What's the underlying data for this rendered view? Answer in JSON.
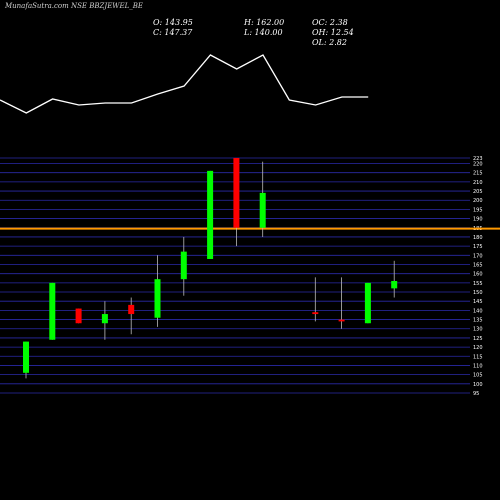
{
  "header": {
    "title": "MunafaSutra.com NSE BBZJEWEL_BE",
    "open": "O: 143.95",
    "close": "C: 147.37",
    "high": "H: 162.00",
    "low": "L: 140.00",
    "oc": "OC: 2.38",
    "oh": "OH: 12.54",
    "ol": "OL: 2.82"
  },
  "colors": {
    "background": "#000000",
    "up": "#00ff00",
    "down": "#ff0000",
    "grid": "#2a2aa8",
    "hline": "#ff9900",
    "line": "#ffffff"
  },
  "chart_data": {
    "type": "candlestick",
    "ylim": [
      95,
      223
    ],
    "yticks": [
      95,
      100,
      105,
      110,
      115,
      120,
      125,
      130,
      135,
      140,
      145,
      150,
      155,
      160,
      165,
      170,
      175,
      180,
      185,
      190,
      195,
      200,
      205,
      210,
      215,
      220,
      223
    ],
    "horizontal_line": 184.5,
    "candles": [
      {
        "open": 106,
        "close": 123,
        "high": 123,
        "low": 103
      },
      {
        "open": 124,
        "close": 155,
        "high": 155,
        "low": 124
      },
      {
        "open": 141,
        "close": 133,
        "high": 141,
        "low": 133
      },
      {
        "open": 133,
        "close": 138,
        "high": 145,
        "low": 124
      },
      {
        "open": 143,
        "close": 138,
        "high": 147,
        "low": 127
      },
      {
        "open": 136,
        "close": 157,
        "high": 170,
        "low": 131
      },
      {
        "open": 157,
        "close": 172,
        "high": 180,
        "low": 148
      },
      {
        "open": 168,
        "close": 216,
        "high": 216,
        "low": 168
      },
      {
        "open": 223,
        "close": 185,
        "high": 223,
        "low": 175
      },
      {
        "open": 185,
        "close": 204,
        "high": 221,
        "low": 180
      },
      null,
      {
        "open": 139,
        "close": 138,
        "high": 158,
        "low": 134
      },
      {
        "open": 135,
        "close": 134,
        "high": 158,
        "low": 130
      },
      {
        "open": 133,
        "close": 155,
        "high": 155,
        "low": 133
      },
      {
        "open": 152,
        "close": 156,
        "high": 167,
        "low": 147
      }
    ],
    "line_values": [
      200,
      187,
      201,
      195,
      197,
      197,
      206,
      214,
      245,
      231,
      245,
      200,
      195,
      203,
      203
    ]
  }
}
